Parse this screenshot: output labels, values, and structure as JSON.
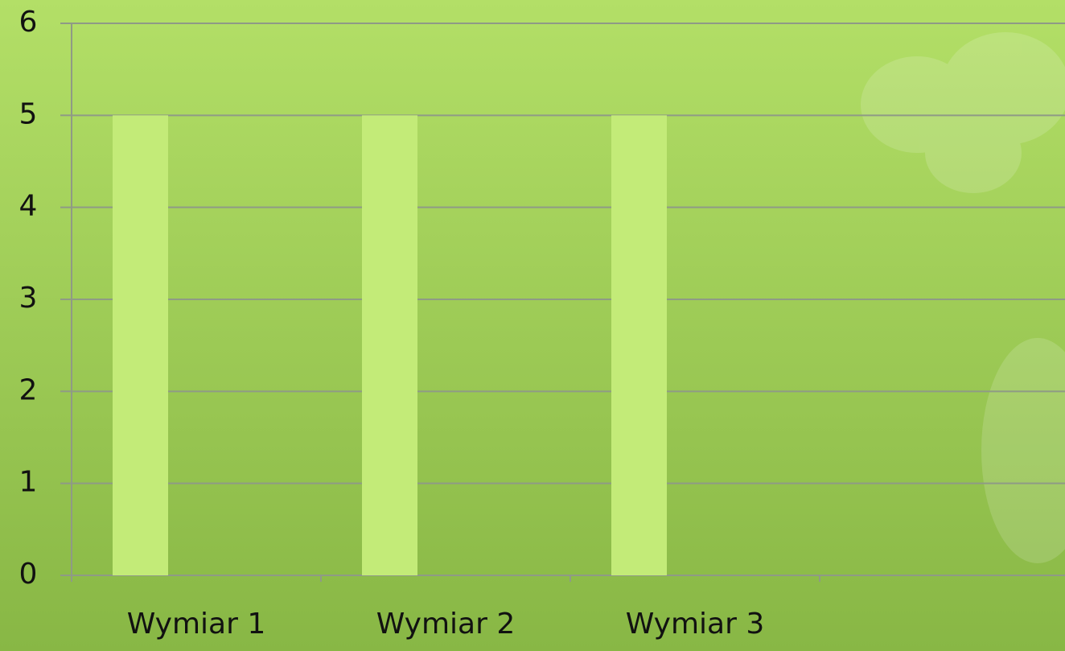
{
  "chart_data": {
    "type": "bar",
    "categories": [
      "Wymiar 1",
      "Wymiar 2",
      "Wymiar 3",
      null
    ],
    "values": [
      5,
      5,
      5,
      null
    ],
    "color": "#c3eb78",
    "ylim": [
      0,
      6
    ],
    "yticks": [
      0,
      1,
      2,
      3,
      4,
      5,
      6
    ],
    "grid": true
  }
}
